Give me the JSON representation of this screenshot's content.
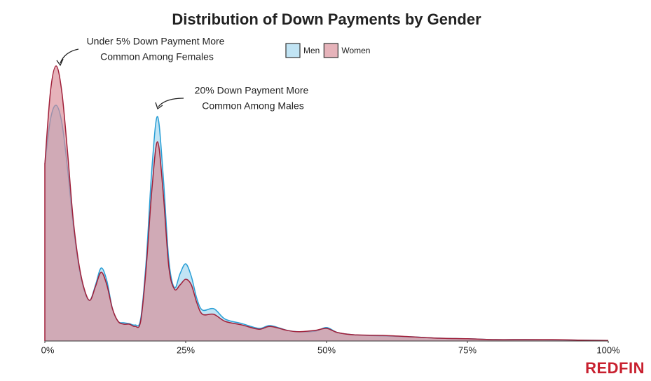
{
  "chart_data": {
    "type": "area",
    "title": "Distribution of Down Payments by Gender",
    "annotations": [
      [
        "Under 5% Down Payment More",
        "Common Among Females"
      ],
      [
        "20% Down Payment More",
        "Common Among Males"
      ]
    ],
    "logo": "REDFIN",
    "x": [
      0,
      1,
      2,
      3,
      4,
      5,
      6,
      7,
      8,
      9,
      10,
      11,
      12,
      13,
      14,
      15,
      16,
      17,
      18,
      19,
      20,
      21,
      22,
      23,
      24,
      25,
      26,
      27,
      28,
      30,
      32,
      35,
      38,
      40,
      43,
      45,
      48,
      50,
      52,
      55,
      60,
      65,
      70,
      75,
      80,
      85,
      90,
      95,
      100
    ],
    "series": [
      {
        "name": "Men",
        "color": "#2a9fd6",
        "fill": "#9fd6ee",
        "values": [
          6.3,
          7.9,
          8.4,
          7.8,
          6.2,
          4.2,
          2.7,
          1.8,
          1.45,
          2.0,
          2.6,
          2.15,
          1.15,
          0.7,
          0.65,
          0.62,
          0.57,
          0.78,
          2.9,
          6.15,
          8.0,
          5.9,
          2.9,
          1.9,
          2.4,
          2.75,
          2.3,
          1.5,
          1.1,
          1.15,
          0.78,
          0.62,
          0.45,
          0.55,
          0.38,
          0.33,
          0.35,
          0.48,
          0.3,
          0.22,
          0.18,
          0.15,
          0.1,
          0.08,
          0.05,
          0.05,
          0.04,
          0.03,
          0.02
        ]
      },
      {
        "name": "Women",
        "color": "#a0203a",
        "fill": "#d98a95",
        "values": [
          6.3,
          8.9,
          9.8,
          8.9,
          6.8,
          4.4,
          2.8,
          1.85,
          1.45,
          1.95,
          2.45,
          2.0,
          1.15,
          0.7,
          0.6,
          0.6,
          0.52,
          0.7,
          2.65,
          5.4,
          7.1,
          5.3,
          2.65,
          1.85,
          2.0,
          2.2,
          2.0,
          1.35,
          0.95,
          0.95,
          0.7,
          0.57,
          0.42,
          0.52,
          0.38,
          0.33,
          0.38,
          0.45,
          0.3,
          0.22,
          0.2,
          0.15,
          0.1,
          0.08,
          0.05,
          0.05,
          0.05,
          0.03,
          0.02
        ]
      }
    ],
    "xlim": [
      0,
      100
    ],
    "xticks": [
      {
        "value": 0,
        "label": "0%"
      },
      {
        "value": 25,
        "label": "25%"
      },
      {
        "value": 50,
        "label": "50%"
      },
      {
        "value": 75,
        "label": "75%"
      },
      {
        "value": 100,
        "label": "100%"
      }
    ],
    "ylim": [
      0,
      10
    ],
    "legend": "top"
  }
}
